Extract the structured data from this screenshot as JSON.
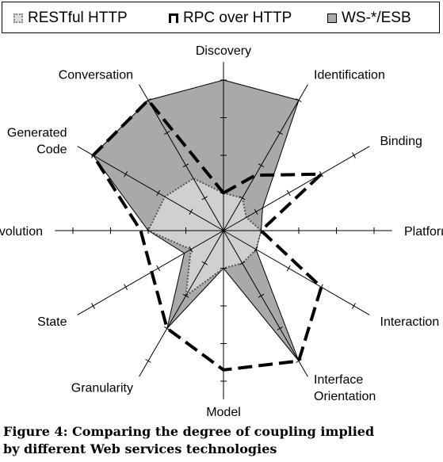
{
  "legend": {
    "items": [
      {
        "label": "RESTful HTTP",
        "swatch": "dotted-light-gray"
      },
      {
        "label": "RPC over HTTP",
        "swatch": "dashed-black"
      },
      {
        "label": "WS-*/ESB",
        "swatch": "solid-gray"
      }
    ]
  },
  "caption": {
    "line1": "Figure 4: Comparing the degree of coupling implied",
    "line2": "by different Web services technologies"
  },
  "chart_data": {
    "type": "radar",
    "axes": [
      "Discovery",
      "Identification",
      "Binding",
      "Platform",
      "Interaction",
      "Interface Orientation",
      "Model",
      "Granularity",
      "State",
      "Evolution",
      "Generated Code",
      "Conversation"
    ],
    "axis_label_lines": [
      [
        "Discovery"
      ],
      [
        "Identification"
      ],
      [
        "Binding"
      ],
      [
        "Platform"
      ],
      [
        "Interaction"
      ],
      [
        "Interface",
        "Orientation"
      ],
      [
        "Model"
      ],
      [
        "Granularity"
      ],
      [
        "State"
      ],
      [
        "Evolution"
      ],
      [
        "Generated",
        "Code"
      ],
      [
        "Conversation"
      ]
    ],
    "scale": {
      "min": 0,
      "max": 4
    },
    "series": [
      {
        "name": "RESTful HTTP",
        "values": [
          1,
          1,
          0.7,
          1,
          1,
          1,
          1,
          2,
          1,
          2,
          1.8,
          1.6
        ],
        "color": "#d0d0d0",
        "stroke": "#555555"
      },
      {
        "name": "RPC over HTTP",
        "values": [
          1,
          1.7,
          3,
          1,
          3,
          4,
          3.7,
          3,
          2.2,
          2.2,
          4,
          4
        ],
        "color": "none",
        "stroke": "#000000"
      },
      {
        "name": "WS-*/ESB",
        "values": [
          4,
          4,
          1.2,
          1,
          1,
          4,
          1,
          3,
          1.2,
          2,
          4,
          4
        ],
        "color": "#a9a9a9",
        "stroke": "#000000"
      }
    ],
    "colors": {
      "rest_fill": "#d0d0d0",
      "ws_fill": "#a9a9a9",
      "rpc_stroke": "#000000",
      "axis": "#000000"
    }
  }
}
